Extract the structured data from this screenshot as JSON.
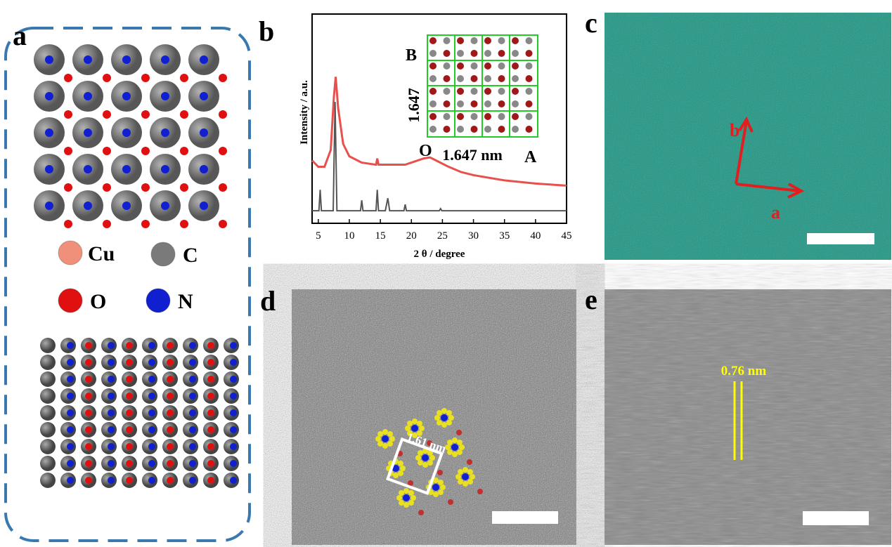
{
  "panel_labels": [
    "a",
    "b",
    "c",
    "d",
    "e"
  ],
  "legend": [
    {
      "symbol": "Cu",
      "color": "#f0907a"
    },
    {
      "symbol": "C",
      "color": "#7a7a7a"
    },
    {
      "symbol": "O",
      "color": "#e01010"
    },
    {
      "symbol": "N",
      "color": "#1020d0"
    }
  ],
  "chart_data": {
    "type": "line",
    "xlabel": "2 θ / degree",
    "ylabel": "Intensity / a.u.",
    "xlim": [
      4,
      45
    ],
    "xticks": [
      5,
      10,
      15,
      20,
      25,
      30,
      35,
      40,
      45
    ],
    "ylim": [
      0,
      100
    ],
    "series": [
      {
        "color": "#e8504e",
        "x": [
          4,
          5,
          6,
          7,
          7.5,
          7.8,
          8.2,
          9,
          10,
          12,
          14.3,
          14.5,
          14.7,
          17,
          19,
          20,
          21,
          22,
          23,
          24,
          26,
          28,
          30,
          35,
          40,
          45
        ],
        "values": [
          30,
          27,
          27,
          35,
          60,
          70,
          55,
          38,
          32,
          29,
          28,
          31,
          28,
          28,
          28,
          29,
          30,
          31,
          31.5,
          30,
          27,
          24.5,
          23,
          20.5,
          19,
          18
        ]
      },
      {
        "color": "#555555",
        "x": [
          4,
          5.1,
          5.3,
          5.5,
          7.4,
          7.7,
          8.0,
          11.8,
          12,
          12.2,
          14.3,
          14.5,
          14.7,
          15.8,
          16.2,
          16.5,
          18.8,
          19.0,
          19.2,
          24.5,
          24.7,
          24.9,
          45
        ],
        "values": [
          6,
          6,
          16,
          6,
          6,
          58,
          6,
          6,
          11,
          6,
          6,
          16,
          6,
          6,
          12,
          6,
          6,
          9,
          6,
          6,
          7,
          6,
          6
        ]
      }
    ]
  },
  "inset_labels": {
    "b_axis": "B",
    "b_length": "1.647",
    "origin": "O",
    "a_length": "1.647 nm",
    "a_axis": "A"
  },
  "panel_c": {
    "axis_a": "a",
    "axis_b": "b"
  },
  "panel_d": {
    "annotation": "1.61 nm"
  },
  "panel_e": {
    "annotation": "0.76 nm"
  }
}
